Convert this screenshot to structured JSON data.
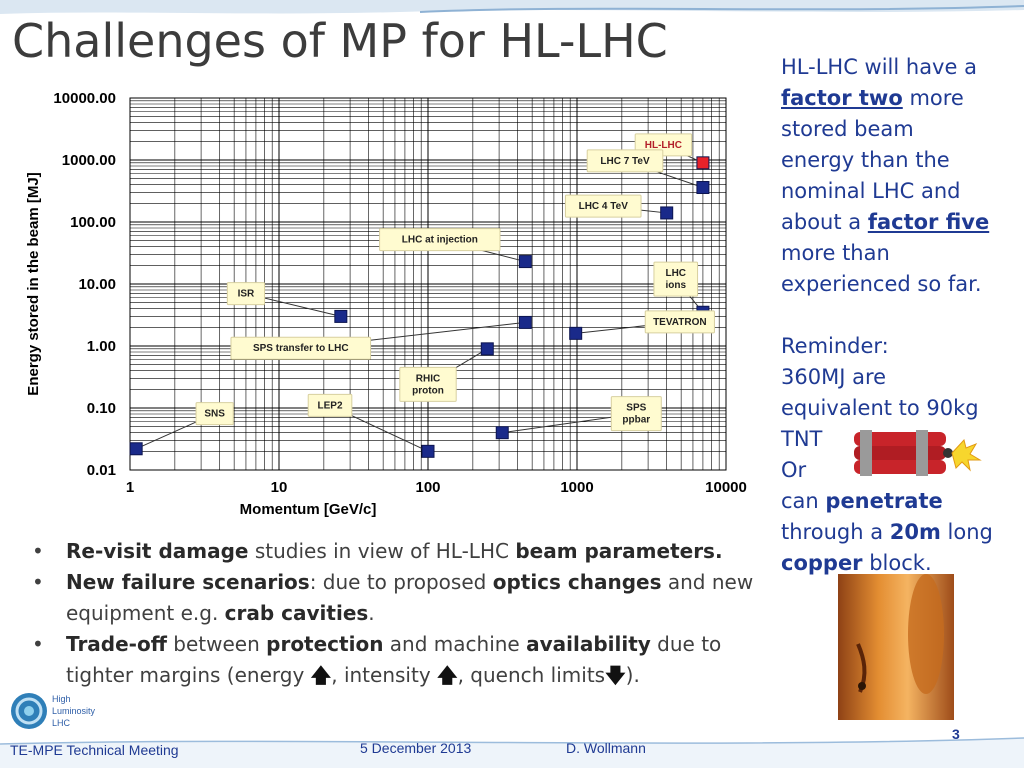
{
  "slide": {
    "title": "Challenges of MP for HL-LHC"
  },
  "chart_data": {
    "type": "scatter",
    "title": "",
    "xlabel": "Momentum  [GeV/c]",
    "ylabel": "Energy stored in the beam [MJ]",
    "xscale": "log",
    "yscale": "log",
    "xlim": [
      1,
      10000
    ],
    "ylim": [
      0.01,
      10000
    ],
    "x_ticks": [
      {
        "value": 1,
        "label": "1"
      },
      {
        "value": 10,
        "label": "10"
      },
      {
        "value": 100,
        "label": "100"
      },
      {
        "value": 1000,
        "label": "1000"
      },
      {
        "value": 10000,
        "label": "10000"
      }
    ],
    "y_ticks": [
      {
        "value": 0.01,
        "label": "0.01"
      },
      {
        "value": 0.1,
        "label": "0.10"
      },
      {
        "value": 1,
        "label": "1.00"
      },
      {
        "value": 10,
        "label": "10.00"
      },
      {
        "value": 100,
        "label": "100.00"
      },
      {
        "value": 1000,
        "label": "1000.00"
      },
      {
        "value": 10000,
        "label": "10000.00"
      }
    ],
    "grid": true,
    "points": [
      {
        "label": "HL-LHC",
        "x": 7000,
        "y": 900,
        "color": "#e8222a",
        "callout_x": 3800,
        "callout_y": 1750
      },
      {
        "label": "LHC 7 TeV",
        "x": 7000,
        "y": 360,
        "color": "#1a2a8a",
        "callout_x": 2100,
        "callout_y": 970
      },
      {
        "label": "LHC 4 TeV",
        "x": 4000,
        "y": 140,
        "color": "#1a2a8a",
        "callout_x": 1500,
        "callout_y": 180
      },
      {
        "label": "LHC at injection",
        "x": 450,
        "y": 23,
        "color": "#1a2a8a",
        "callout_x": 120,
        "callout_y": 52
      },
      {
        "label": "LHC\nions",
        "x": 7000,
        "y": 3.5,
        "color": "#1a2a8a",
        "callout_x": 4600,
        "callout_y": 12
      },
      {
        "label": "ISR",
        "x": 26,
        "y": 3,
        "color": "#1a2a8a",
        "callout_x": 6,
        "callout_y": 7
      },
      {
        "label": "TEVATRON",
        "x": 980,
        "y": 1.6,
        "color": "#1a2a8a",
        "callout_x": 4900,
        "callout_y": 2.45
      },
      {
        "label": "SPS transfer to LHC",
        "x": 450,
        "y": 2.4,
        "color": "#1a2a8a",
        "callout_x": 14,
        "callout_y": 0.92
      },
      {
        "label": "RHIC\nproton",
        "x": 250,
        "y": 0.9,
        "color": "#1a2a8a",
        "callout_x": 100,
        "callout_y": 0.24
      },
      {
        "label": "LEP2",
        "x": 100,
        "y": 0.02,
        "color": "#1a2a8a",
        "callout_x": 22,
        "callout_y": 0.11
      },
      {
        "label": "SNS",
        "x": 1.1,
        "y": 0.022,
        "color": "#1a2a8a",
        "callout_x": 3.7,
        "callout_y": 0.081
      },
      {
        "label": "SPS\nppbar",
        "x": 315,
        "y": 0.04,
        "color": "#1a2a8a",
        "callout_x": 2500,
        "callout_y": 0.081
      }
    ]
  },
  "sidebar": {
    "l1": "HL-LHC will have a",
    "factor_two": "factor two",
    "l2b": " more",
    "l3": "stored beam",
    "l4": "energy than the",
    "l5": "nominal LHC and",
    "l6a": "about a ",
    "factor_five": "factor five",
    "l7": "more than",
    "l8": "experienced so far.",
    "r1": "Reminder:",
    "r2": "360MJ are",
    "r3": "equivalent to 90kg",
    "r4": "TNT",
    "r5": "Or",
    "r6a": "can ",
    "penetrate": "penetrate",
    "r7a": "through a ",
    "twenty_m": "20m",
    "r7b": " long",
    "copper": "copper",
    "r8b": " block."
  },
  "bullets": {
    "b1_bold1": "Re-visit damage",
    "b1_text1": " studies in view of HL-LHC ",
    "b1_bold2": "beam parameters.",
    "b2_bold1": "New failure scenarios",
    "b2_text1": ": due to proposed ",
    "b2_bold2": "optics changes",
    "b2_text2": " and new equipment e.g. ",
    "b2_bold3": "crab cavities",
    "b2_text3": ".",
    "b3_bold1": "Trade-off",
    "b3_text1": " between ",
    "b3_bold2": "protection",
    "b3_text2": " and machine ",
    "b3_bold3": "availability",
    "b3_text3": " due to tighter margins (energy ",
    "b3_text4": ", intensity ",
    "b3_text5": ", quench limits",
    "b3_text6": ")."
  },
  "logo": {
    "line1": "High",
    "line2": "Luminosity",
    "line3": "LHC"
  },
  "footer": {
    "left": "TE-MPE Technical Meeting",
    "date": "5 December 2013",
    "author": "D. Wollmann",
    "page": "3"
  },
  "colors": {
    "accent_blue": "#1f3a93",
    "marker_blue": "#1a2a8a",
    "marker_red": "#e8222a",
    "callout_fill": "#fffbd0"
  }
}
